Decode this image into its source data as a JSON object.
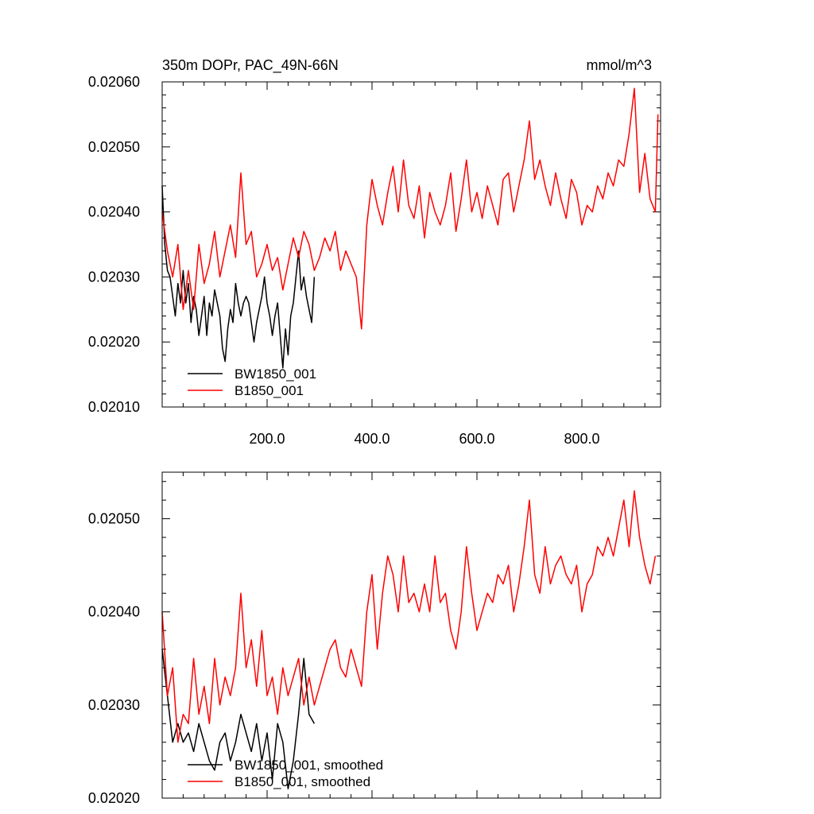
{
  "chart_data": [
    {
      "type": "line",
      "title": "350m DOPr, PAC_49N-66N",
      "units": "mmol/m^3",
      "xlim": [
        0,
        950
      ],
      "ylim": [
        0.0201,
        0.0206
      ],
      "x_ticks": [
        200,
        400,
        600,
        800
      ],
      "x_tick_labels": [
        "200.0",
        "400.0",
        "600.0",
        "800.0"
      ],
      "y_ticks": [
        0.0201,
        0.0202,
        0.0203,
        0.0204,
        0.0205,
        0.0206
      ],
      "y_tick_labels": [
        "0.02010",
        "0.02020",
        "0.02030",
        "0.02040",
        "0.02050",
        "0.02060"
      ],
      "legend_position": "bottom-left",
      "series": [
        {
          "name": "BW1850_001",
          "color": "#000000",
          "x": [
            0,
            5,
            10,
            15,
            20,
            25,
            30,
            35,
            40,
            45,
            50,
            55,
            60,
            65,
            70,
            75,
            80,
            85,
            90,
            95,
            100,
            105,
            110,
            115,
            120,
            125,
            130,
            135,
            140,
            145,
            150,
            155,
            160,
            165,
            170,
            175,
            180,
            185,
            190,
            195,
            200,
            205,
            210,
            215,
            220,
            225,
            230,
            235,
            240,
            245,
            250,
            255,
            260,
            265,
            270,
            275,
            280,
            285,
            290
          ],
          "y": [
            0.02044,
            0.02035,
            0.02031,
            0.0203,
            0.02027,
            0.02024,
            0.02029,
            0.02026,
            0.02031,
            0.02026,
            0.02029,
            0.02023,
            0.02027,
            0.02025,
            0.02021,
            0.02024,
            0.02027,
            0.02021,
            0.02026,
            0.02024,
            0.02028,
            0.02026,
            0.02024,
            0.02019,
            0.02017,
            0.02022,
            0.02025,
            0.02023,
            0.02029,
            0.02026,
            0.02024,
            0.02026,
            0.02027,
            0.02026,
            0.02023,
            0.0202,
            0.02023,
            0.02025,
            0.02027,
            0.0203,
            0.02026,
            0.02024,
            0.02021,
            0.02024,
            0.02026,
            0.02021,
            0.02016,
            0.02022,
            0.02018,
            0.02024,
            0.02026,
            0.0203,
            0.02034,
            0.02028,
            0.0203,
            0.02027,
            0.02025,
            0.02023,
            0.0203
          ]
        },
        {
          "name": "B1850_001",
          "color": "#ff0000",
          "x": [
            0,
            10,
            20,
            30,
            40,
            50,
            60,
            70,
            80,
            90,
            100,
            110,
            120,
            130,
            140,
            150,
            160,
            170,
            180,
            190,
            200,
            210,
            220,
            230,
            240,
            250,
            260,
            270,
            280,
            290,
            300,
            310,
            320,
            330,
            340,
            350,
            360,
            370,
            380,
            390,
            400,
            410,
            420,
            430,
            440,
            450,
            460,
            470,
            480,
            490,
            500,
            510,
            520,
            530,
            540,
            550,
            560,
            570,
            580,
            590,
            600,
            610,
            620,
            630,
            640,
            650,
            660,
            670,
            680,
            690,
            700,
            710,
            720,
            730,
            740,
            750,
            760,
            770,
            780,
            790,
            800,
            810,
            820,
            830,
            840,
            850,
            860,
            870,
            880,
            890,
            900,
            910,
            920,
            930,
            940,
            945
          ],
          "y": [
            0.0204,
            0.02034,
            0.0203,
            0.02035,
            0.02025,
            0.02031,
            0.02025,
            0.02035,
            0.02029,
            0.02032,
            0.02037,
            0.0203,
            0.02034,
            0.02038,
            0.02033,
            0.02046,
            0.02035,
            0.02037,
            0.0203,
            0.02032,
            0.02035,
            0.02031,
            0.02033,
            0.02028,
            0.02032,
            0.02036,
            0.02033,
            0.02037,
            0.02035,
            0.02031,
            0.02033,
            0.02036,
            0.02034,
            0.02037,
            0.02031,
            0.02034,
            0.02032,
            0.0203,
            0.02022,
            0.02038,
            0.02045,
            0.02041,
            0.02038,
            0.02043,
            0.02047,
            0.0204,
            0.02048,
            0.02041,
            0.02039,
            0.02044,
            0.02036,
            0.02043,
            0.0204,
            0.02038,
            0.02041,
            0.02046,
            0.02037,
            0.02042,
            0.02048,
            0.0204,
            0.02043,
            0.02039,
            0.02044,
            0.02041,
            0.02038,
            0.02045,
            0.02046,
            0.0204,
            0.02044,
            0.02048,
            0.02054,
            0.02045,
            0.02048,
            0.02044,
            0.02041,
            0.02046,
            0.02042,
            0.02039,
            0.02045,
            0.02043,
            0.02038,
            0.02041,
            0.0204,
            0.02044,
            0.02042,
            0.02046,
            0.02044,
            0.02048,
            0.02047,
            0.02052,
            0.02059,
            0.02043,
            0.02049,
            0.02042,
            0.0204,
            0.02055
          ]
        }
      ]
    },
    {
      "type": "line",
      "xlim": [
        0,
        950
      ],
      "ylim": [
        0.0202,
        0.02055
      ],
      "x_ticks": [
        200,
        400,
        600,
        800
      ],
      "y_ticks": [
        0.0202,
        0.0203,
        0.0204,
        0.0205
      ],
      "y_tick_labels": [
        "0.02020",
        "0.02030",
        "0.02040",
        "0.02050"
      ],
      "legend_position": "bottom-left",
      "series": [
        {
          "name": "BW1850_001, smoothed",
          "color": "#000000",
          "x": [
            0,
            10,
            20,
            30,
            40,
            50,
            60,
            70,
            80,
            90,
            100,
            110,
            120,
            130,
            140,
            150,
            160,
            170,
            180,
            190,
            200,
            210,
            220,
            230,
            240,
            250,
            260,
            270,
            280,
            290
          ],
          "y": [
            0.02036,
            0.02031,
            0.02026,
            0.02028,
            0.02026,
            0.02027,
            0.02025,
            0.02028,
            0.02026,
            0.02024,
            0.02023,
            0.02026,
            0.02027,
            0.02024,
            0.02026,
            0.02029,
            0.02027,
            0.02025,
            0.02028,
            0.02024,
            0.02027,
            0.02022,
            0.02028,
            0.02026,
            0.02021,
            0.02024,
            0.02029,
            0.02035,
            0.02029,
            0.02028
          ]
        },
        {
          "name": "B1850_001, smoothed",
          "color": "#ff0000",
          "x": [
            0,
            10,
            20,
            30,
            40,
            50,
            60,
            70,
            80,
            90,
            100,
            110,
            120,
            130,
            140,
            150,
            160,
            170,
            180,
            190,
            200,
            210,
            220,
            230,
            240,
            250,
            260,
            270,
            280,
            290,
            300,
            310,
            320,
            330,
            340,
            350,
            360,
            370,
            380,
            390,
            400,
            410,
            420,
            430,
            440,
            450,
            460,
            470,
            480,
            490,
            500,
            510,
            520,
            530,
            540,
            550,
            560,
            570,
            580,
            590,
            600,
            610,
            620,
            630,
            640,
            650,
            660,
            670,
            680,
            690,
            700,
            710,
            720,
            730,
            740,
            750,
            760,
            770,
            780,
            790,
            800,
            810,
            820,
            830,
            840,
            850,
            860,
            870,
            880,
            890,
            900,
            910,
            920,
            930,
            940
          ],
          "y": [
            0.0204,
            0.02031,
            0.02034,
            0.02026,
            0.02029,
            0.02028,
            0.02035,
            0.02029,
            0.02032,
            0.02028,
            0.02035,
            0.0203,
            0.02033,
            0.02031,
            0.02034,
            0.02042,
            0.02034,
            0.02037,
            0.02032,
            0.02038,
            0.02031,
            0.02033,
            0.02029,
            0.02034,
            0.02031,
            0.02033,
            0.02035,
            0.0203,
            0.02033,
            0.0203,
            0.02032,
            0.02034,
            0.02036,
            0.02037,
            0.02034,
            0.02033,
            0.02036,
            0.02034,
            0.02032,
            0.0204,
            0.02044,
            0.02036,
            0.02042,
            0.02046,
            0.02044,
            0.0204,
            0.02046,
            0.02041,
            0.02042,
            0.0204,
            0.02043,
            0.0204,
            0.02046,
            0.02041,
            0.02042,
            0.02038,
            0.02036,
            0.0204,
            0.02047,
            0.02042,
            0.02038,
            0.0204,
            0.02042,
            0.02041,
            0.02044,
            0.02043,
            0.02045,
            0.0204,
            0.02043,
            0.02047,
            0.02052,
            0.02044,
            0.02042,
            0.02047,
            0.02043,
            0.02045,
            0.02046,
            0.02044,
            0.02043,
            0.02045,
            0.0204,
            0.02043,
            0.02044,
            0.02047,
            0.02046,
            0.02048,
            0.02046,
            0.02049,
            0.02052,
            0.02047,
            0.02053,
            0.02048,
            0.02045,
            0.02043,
            0.02046
          ]
        }
      ]
    }
  ]
}
